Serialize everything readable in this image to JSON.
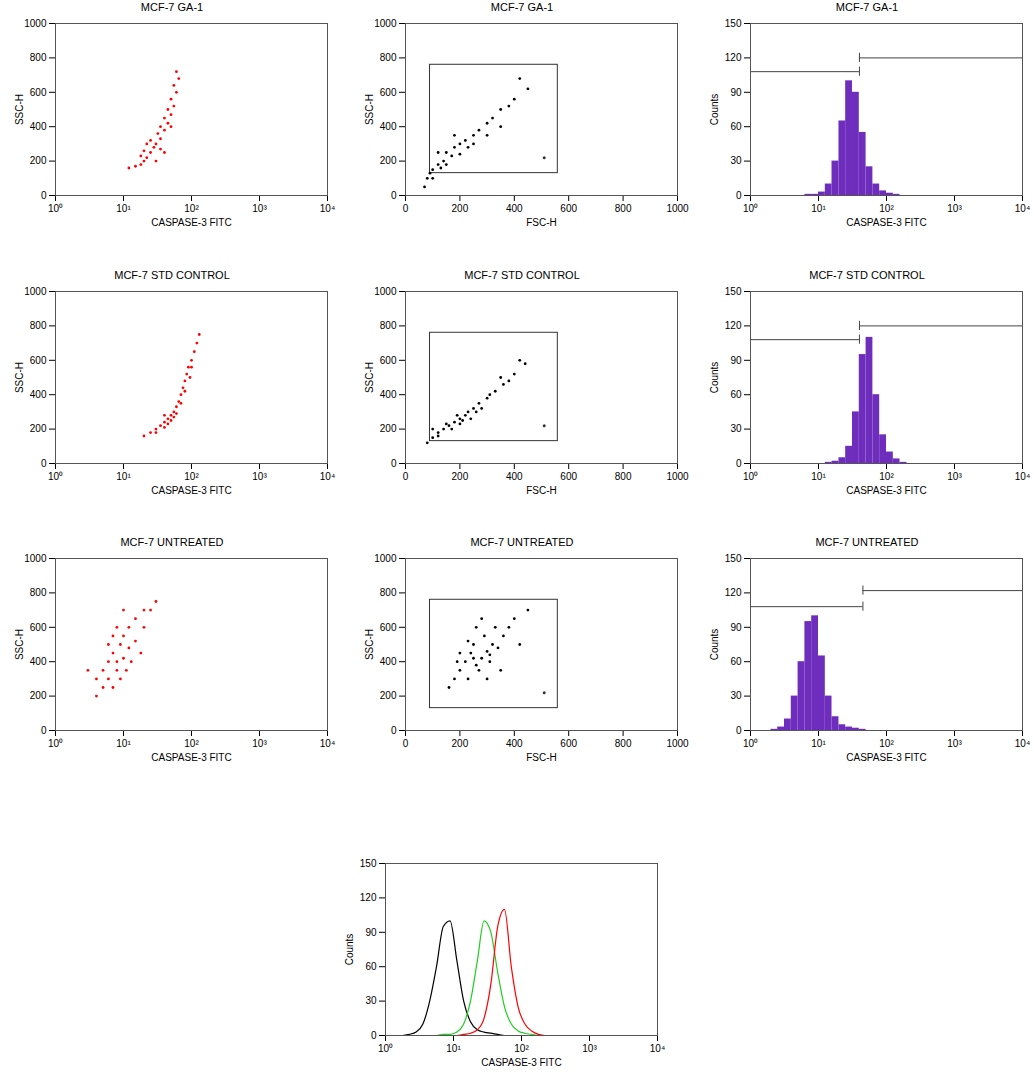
{
  "chart_data": [
    {
      "type": "scatter",
      "title": "MCF-7 GA-1",
      "x_label": "CASPASE-3 FITC",
      "y_label": "SSC-H",
      "log": "x",
      "color": "red",
      "marker": "dot",
      "xlim": [
        1,
        10000
      ],
      "xticks": [
        {
          "value": 1,
          "label": "10⁰"
        },
        {
          "value": 10,
          "label": "10¹"
        },
        {
          "value": 100,
          "label": "10²"
        },
        {
          "value": 1000,
          "label": "10³"
        },
        {
          "value": 10000,
          "label": "10⁴"
        }
      ],
      "ylim": [
        0,
        1000
      ],
      "yticks": [
        0,
        200,
        400,
        600,
        800,
        1000
      ],
      "x": [
        12,
        15,
        18,
        20,
        22,
        25,
        20,
        28,
        30,
        25,
        35,
        32,
        40,
        35,
        45,
        40,
        50,
        45,
        55,
        50,
        60,
        55,
        65,
        60,
        30,
        40,
        18,
        22,
        35,
        50
      ],
      "values": [
        160,
        170,
        180,
        200,
        220,
        250,
        260,
        280,
        300,
        320,
        330,
        360,
        380,
        400,
        420,
        450,
        470,
        500,
        520,
        560,
        600,
        640,
        680,
        720,
        200,
        250,
        230,
        300,
        270,
        400
      ]
    },
    {
      "type": "scatter",
      "title": "MCF-7 GA-1",
      "x_label": "FSC-H",
      "y_label": "SSC-H",
      "color": "black",
      "marker": "dot",
      "xlim": [
        0,
        1000
      ],
      "xticks": [
        0,
        200,
        400,
        600,
        800,
        1000
      ],
      "ylim": [
        0,
        1000
      ],
      "yticks": [
        0,
        200,
        400,
        600,
        800,
        1000
      ],
      "gate": {
        "x": [
          90,
          560
        ],
        "y": [
          130,
          760
        ]
      },
      "gate_marker": [
        510,
        220
      ],
      "x": [
        70,
        80,
        90,
        100,
        120,
        140,
        150,
        170,
        180,
        200,
        220,
        230,
        250,
        270,
        300,
        320,
        350,
        380,
        400,
        450,
        150,
        200,
        250,
        120,
        300,
        180,
        100,
        130,
        350,
        420
      ],
      "values": [
        50,
        100,
        130,
        150,
        180,
        200,
        250,
        230,
        280,
        300,
        320,
        280,
        350,
        380,
        420,
        450,
        500,
        520,
        560,
        620,
        180,
        240,
        300,
        250,
        350,
        350,
        100,
        160,
        400,
        680
      ]
    },
    {
      "type": "histogram",
      "title": "MCF-7 GA-1",
      "x_label": "CASPASE-3 FITC",
      "y_label": "Counts",
      "log": "x",
      "color": "#6f2dbd",
      "xlim": [
        1,
        10000
      ],
      "xticks": [
        {
          "value": 1,
          "label": "10⁰"
        },
        {
          "value": 10,
          "label": "10¹"
        },
        {
          "value": 100,
          "label": "10²"
        },
        {
          "value": 1000,
          "label": "10³"
        },
        {
          "value": 10000,
          "label": "10⁴"
        }
      ],
      "ylim": [
        0,
        150
      ],
      "yticks": [
        0,
        30,
        60,
        90,
        120,
        150
      ],
      "bins": [
        1,
        1.26,
        1.58,
        2,
        2.51,
        3.16,
        3.98,
        5.01,
        6.31,
        7.94,
        10,
        12.6,
        15.8,
        20,
        25.1,
        31.6,
        39.8,
        50.1,
        63.1,
        79.4,
        100,
        126,
        158,
        200,
        251,
        316,
        398,
        501,
        631,
        794,
        1000
      ],
      "counts": [
        0,
        0,
        0,
        0,
        0,
        0,
        0,
        0,
        1,
        1,
        3,
        10,
        30,
        65,
        100,
        90,
        55,
        25,
        10,
        4,
        2,
        1,
        0,
        0,
        0,
        0,
        0,
        0,
        0,
        0
      ],
      "markers": [
        {
          "x": [
            1,
            40
          ],
          "y": 108
        },
        {
          "x": [
            40,
            10000
          ],
          "y": 120
        }
      ]
    },
    {
      "type": "scatter",
      "title": "MCF-7 STD CONTROL",
      "x_label": "CASPASE-3 FITC",
      "y_label": "SSC-H",
      "log": "x",
      "color": "red",
      "marker": "dot",
      "xlim": [
        1,
        10000
      ],
      "xticks": [
        {
          "value": 1,
          "label": "10⁰"
        },
        {
          "value": 10,
          "label": "10¹"
        },
        {
          "value": 100,
          "label": "10²"
        },
        {
          "value": 1000,
          "label": "10³"
        },
        {
          "value": 10000,
          "label": "10⁴"
        }
      ],
      "ylim": [
        0,
        1000
      ],
      "yticks": [
        0,
        200,
        400,
        600,
        800,
        1000
      ],
      "x": [
        20,
        25,
        30,
        35,
        40,
        45,
        50,
        55,
        60,
        65,
        70,
        75,
        80,
        85,
        90,
        100,
        110,
        120,
        130,
        30,
        40,
        50,
        45,
        60,
        70,
        80,
        95,
        100,
        40,
        55
      ],
      "values": [
        160,
        180,
        200,
        220,
        240,
        260,
        280,
        300,
        330,
        360,
        400,
        440,
        480,
        520,
        560,
        600,
        650,
        700,
        750,
        180,
        210,
        250,
        230,
        290,
        350,
        420,
        500,
        560,
        280,
        270
      ]
    },
    {
      "type": "scatter",
      "title": "MCF-7 STD CONTROL",
      "x_label": "FSC-H",
      "y_label": "SSC-H",
      "color": "black",
      "marker": "dot",
      "xlim": [
        0,
        1000
      ],
      "xticks": [
        0,
        200,
        400,
        600,
        800,
        1000
      ],
      "ylim": [
        0,
        1000
      ],
      "yticks": [
        0,
        200,
        400,
        600,
        800,
        1000
      ],
      "gate": {
        "x": [
          90,
          560
        ],
        "y": [
          130,
          760
        ]
      },
      "gate_marker": [
        510,
        220
      ],
      "x": [
        80,
        100,
        120,
        140,
        160,
        180,
        200,
        220,
        250,
        270,
        300,
        330,
        360,
        400,
        440,
        150,
        200,
        230,
        280,
        170,
        210,
        260,
        310,
        350,
        120,
        190,
        240,
        380,
        420,
        100
      ],
      "values": [
        120,
        150,
        180,
        200,
        220,
        240,
        260,
        280,
        320,
        350,
        380,
        420,
        460,
        520,
        580,
        230,
        230,
        300,
        320,
        200,
        250,
        300,
        400,
        500,
        160,
        280,
        260,
        480,
        600,
        200
      ]
    },
    {
      "type": "histogram",
      "title": "MCF-7 STD CONTROL",
      "x_label": "CASPASE-3 FITC",
      "y_label": "Counts",
      "log": "x",
      "color": "#6f2dbd",
      "xlim": [
        1,
        10000
      ],
      "xticks": [
        {
          "value": 1,
          "label": "10⁰"
        },
        {
          "value": 10,
          "label": "10¹"
        },
        {
          "value": 100,
          "label": "10²"
        },
        {
          "value": 1000,
          "label": "10³"
        },
        {
          "value": 10000,
          "label": "10⁴"
        }
      ],
      "ylim": [
        0,
        150
      ],
      "yticks": [
        0,
        30,
        60,
        90,
        120,
        150
      ],
      "bins": [
        1,
        1.26,
        1.58,
        2,
        2.51,
        3.16,
        3.98,
        5.01,
        6.31,
        7.94,
        10,
        12.6,
        15.8,
        20,
        25.1,
        31.6,
        39.8,
        50.1,
        63.1,
        79.4,
        100,
        126,
        158,
        200,
        251,
        316,
        398,
        501,
        631,
        794,
        1000
      ],
      "counts": [
        0,
        0,
        0,
        0,
        0,
        0,
        0,
        0,
        0,
        0,
        0,
        1,
        2,
        5,
        15,
        45,
        95,
        110,
        60,
        25,
        10,
        4,
        1,
        0,
        0,
        0,
        0,
        0,
        0,
        0
      ],
      "markers": [
        {
          "x": [
            1,
            40
          ],
          "y": 108
        },
        {
          "x": [
            40,
            10000
          ],
          "y": 120
        }
      ]
    },
    {
      "type": "scatter",
      "title": "MCF-7 UNTREATED",
      "x_label": "CASPASE-3 FITC",
      "y_label": "SSC-H",
      "log": "x",
      "color": "red",
      "marker": "dot",
      "xlim": [
        1,
        10000
      ],
      "xticks": [
        {
          "value": 1,
          "label": "10⁰"
        },
        {
          "value": 10,
          "label": "10¹"
        },
        {
          "value": 100,
          "label": "10²"
        },
        {
          "value": 1000,
          "label": "10³"
        },
        {
          "value": 10000,
          "label": "10⁴"
        }
      ],
      "ylim": [
        0,
        1000
      ],
      "yticks": [
        0,
        200,
        400,
        600,
        800,
        1000
      ],
      "x": [
        4,
        5,
        6,
        6,
        7,
        8,
        8,
        9,
        10,
        10,
        12,
        12,
        15,
        15,
        20,
        20,
        5,
        7,
        9,
        11,
        13,
        6,
        8,
        25,
        30,
        4,
        10,
        18,
        3,
        7
      ],
      "values": [
        300,
        350,
        300,
        400,
        450,
        350,
        400,
        500,
        420,
        550,
        480,
        600,
        520,
        650,
        600,
        700,
        250,
        250,
        300,
        350,
        400,
        500,
        600,
        700,
        750,
        200,
        700,
        450,
        350,
        550
      ]
    },
    {
      "type": "scatter",
      "title": "MCF-7 UNTREATED",
      "x_label": "FSC-H",
      "y_label": "SSC-H",
      "color": "black",
      "marker": "dot",
      "xlim": [
        0,
        1000
      ],
      "xticks": [
        0,
        200,
        400,
        600,
        800,
        1000
      ],
      "ylim": [
        0,
        1000
      ],
      "yticks": [
        0,
        200,
        400,
        600,
        800,
        1000
      ],
      "gate": {
        "x": [
          90,
          560
        ],
        "y": [
          130,
          760
        ]
      },
      "gate_marker": [
        510,
        220
      ],
      "x": [
        180,
        200,
        220,
        240,
        260,
        280,
        300,
        320,
        250,
        270,
        290,
        310,
        340,
        360,
        380,
        200,
        230,
        260,
        400,
        420,
        160,
        350,
        300,
        280,
        230,
        330,
        190,
        450,
        250,
        310
      ],
      "values": [
        300,
        350,
        400,
        450,
        380,
        420,
        460,
        500,
        500,
        350,
        550,
        400,
        480,
        550,
        600,
        450,
        300,
        600,
        650,
        500,
        250,
        350,
        300,
        650,
        520,
        600,
        400,
        700,
        420,
        440
      ]
    },
    {
      "type": "histogram",
      "title": "MCF-7 UNTREATED",
      "x_label": "CASPASE-3 FITC",
      "y_label": "Counts",
      "log": "x",
      "color": "#6f2dbd",
      "xlim": [
        1,
        10000
      ],
      "xticks": [
        {
          "value": 1,
          "label": "10⁰"
        },
        {
          "value": 10,
          "label": "10¹"
        },
        {
          "value": 100,
          "label": "10²"
        },
        {
          "value": 1000,
          "label": "10³"
        },
        {
          "value": 10000,
          "label": "10⁴"
        }
      ],
      "ylim": [
        0,
        150
      ],
      "yticks": [
        0,
        30,
        60,
        90,
        120,
        150
      ],
      "bins": [
        1,
        1.26,
        1.58,
        2,
        2.51,
        3.16,
        3.98,
        5.01,
        6.31,
        7.94,
        10,
        12.6,
        15.8,
        20,
        25.1,
        31.6,
        39.8,
        50.1,
        63.1,
        79.4,
        100,
        126,
        158,
        200,
        251,
        316,
        398,
        501,
        631,
        794,
        1000
      ],
      "counts": [
        0,
        0,
        0,
        1,
        3,
        10,
        30,
        60,
        95,
        100,
        65,
        30,
        12,
        5,
        3,
        2,
        1,
        0,
        0,
        0,
        0,
        0,
        0,
        0,
        0,
        0,
        0,
        0,
        0,
        0
      ],
      "markers": [
        {
          "x": [
            1,
            45
          ],
          "y": 108
        },
        {
          "x": [
            45,
            10000
          ],
          "y": 122
        }
      ]
    },
    {
      "type": "histogram_overlay",
      "x_label": "CASPASE-3 FITC",
      "y_label": "Counts",
      "log": "x",
      "line_style": "solid",
      "xlim": [
        1,
        10000
      ],
      "xticks": [
        {
          "value": 1,
          "label": "10⁰"
        },
        {
          "value": 10,
          "label": "10¹"
        },
        {
          "value": 100,
          "label": "10²"
        },
        {
          "value": 1000,
          "label": "10³"
        },
        {
          "value": 10000,
          "label": "10⁴"
        }
      ],
      "ylim": [
        0,
        150
      ],
      "yticks": [
        0,
        30,
        60,
        90,
        120,
        150
      ],
      "bins": [
        1,
        1.26,
        1.58,
        2,
        2.51,
        3.16,
        3.98,
        5.01,
        6.31,
        7.94,
        10,
        12.6,
        15.8,
        20,
        25.1,
        31.6,
        39.8,
        50.1,
        63.1,
        79.4,
        100,
        126,
        158,
        200,
        251,
        316,
        398,
        501,
        631,
        794,
        1000
      ],
      "series": [
        {
          "color": "black",
          "values": [
            0,
            0,
            0,
            1,
            3,
            10,
            30,
            60,
            95,
            100,
            65,
            30,
            12,
            5,
            3,
            2,
            1,
            0,
            0,
            0,
            0,
            0,
            0,
            0,
            0,
            0,
            0,
            0,
            0,
            0
          ]
        },
        {
          "color": "#22cc22",
          "values": [
            0,
            0,
            0,
            0,
            0,
            0,
            0,
            0,
            1,
            1,
            3,
            10,
            30,
            65,
            100,
            90,
            55,
            25,
            10,
            4,
            2,
            1,
            0,
            0,
            0,
            0,
            0,
            0,
            0,
            0
          ]
        },
        {
          "color": "red",
          "values": [
            0,
            0,
            0,
            0,
            0,
            0,
            0,
            0,
            0,
            0,
            0,
            1,
            2,
            5,
            15,
            45,
            95,
            110,
            60,
            25,
            10,
            4,
            1,
            0,
            0,
            0,
            0,
            0,
            0,
            0
          ]
        }
      ]
    }
  ]
}
